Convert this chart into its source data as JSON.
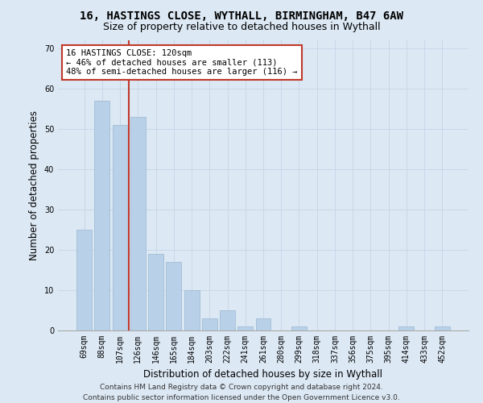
{
  "title_line1": "16, HASTINGS CLOSE, WYTHALL, BIRMINGHAM, B47 6AW",
  "title_line2": "Size of property relative to detached houses in Wythall",
  "xlabel": "Distribution of detached houses by size in Wythall",
  "ylabel": "Number of detached properties",
  "categories": [
    "69sqm",
    "88sqm",
    "107sqm",
    "126sqm",
    "146sqm",
    "165sqm",
    "184sqm",
    "203sqm",
    "222sqm",
    "241sqm",
    "261sqm",
    "280sqm",
    "299sqm",
    "318sqm",
    "337sqm",
    "356sqm",
    "375sqm",
    "395sqm",
    "414sqm",
    "433sqm",
    "452sqm"
  ],
  "values": [
    25,
    57,
    51,
    53,
    19,
    17,
    10,
    3,
    5,
    1,
    3,
    0,
    1,
    0,
    0,
    0,
    0,
    0,
    1,
    0,
    1
  ],
  "bar_color": "#b8d0e8",
  "bar_edge_color": "#9ab8d0",
  "vline_x": 2.5,
  "vline_color": "#c0392b",
  "annotation_text": "16 HASTINGS CLOSE: 120sqm\n← 46% of detached houses are smaller (113)\n48% of semi-detached houses are larger (116) →",
  "annotation_box_color": "white",
  "annotation_box_edge_color": "#c0392b",
  "ylim": [
    0,
    72
  ],
  "yticks": [
    0,
    10,
    20,
    30,
    40,
    50,
    60,
    70
  ],
  "grid_color": "#c8d8e8",
  "background_color": "#dce8f4",
  "axes_bg_color": "#dce8f4",
  "footer_line1": "Contains HM Land Registry data © Crown copyright and database right 2024.",
  "footer_line2": "Contains public sector information licensed under the Open Government Licence v3.0.",
  "title_fontsize": 10,
  "subtitle_fontsize": 9,
  "axis_label_fontsize": 8.5,
  "tick_fontsize": 7,
  "annotation_fontsize": 7.5,
  "footer_fontsize": 6.5
}
